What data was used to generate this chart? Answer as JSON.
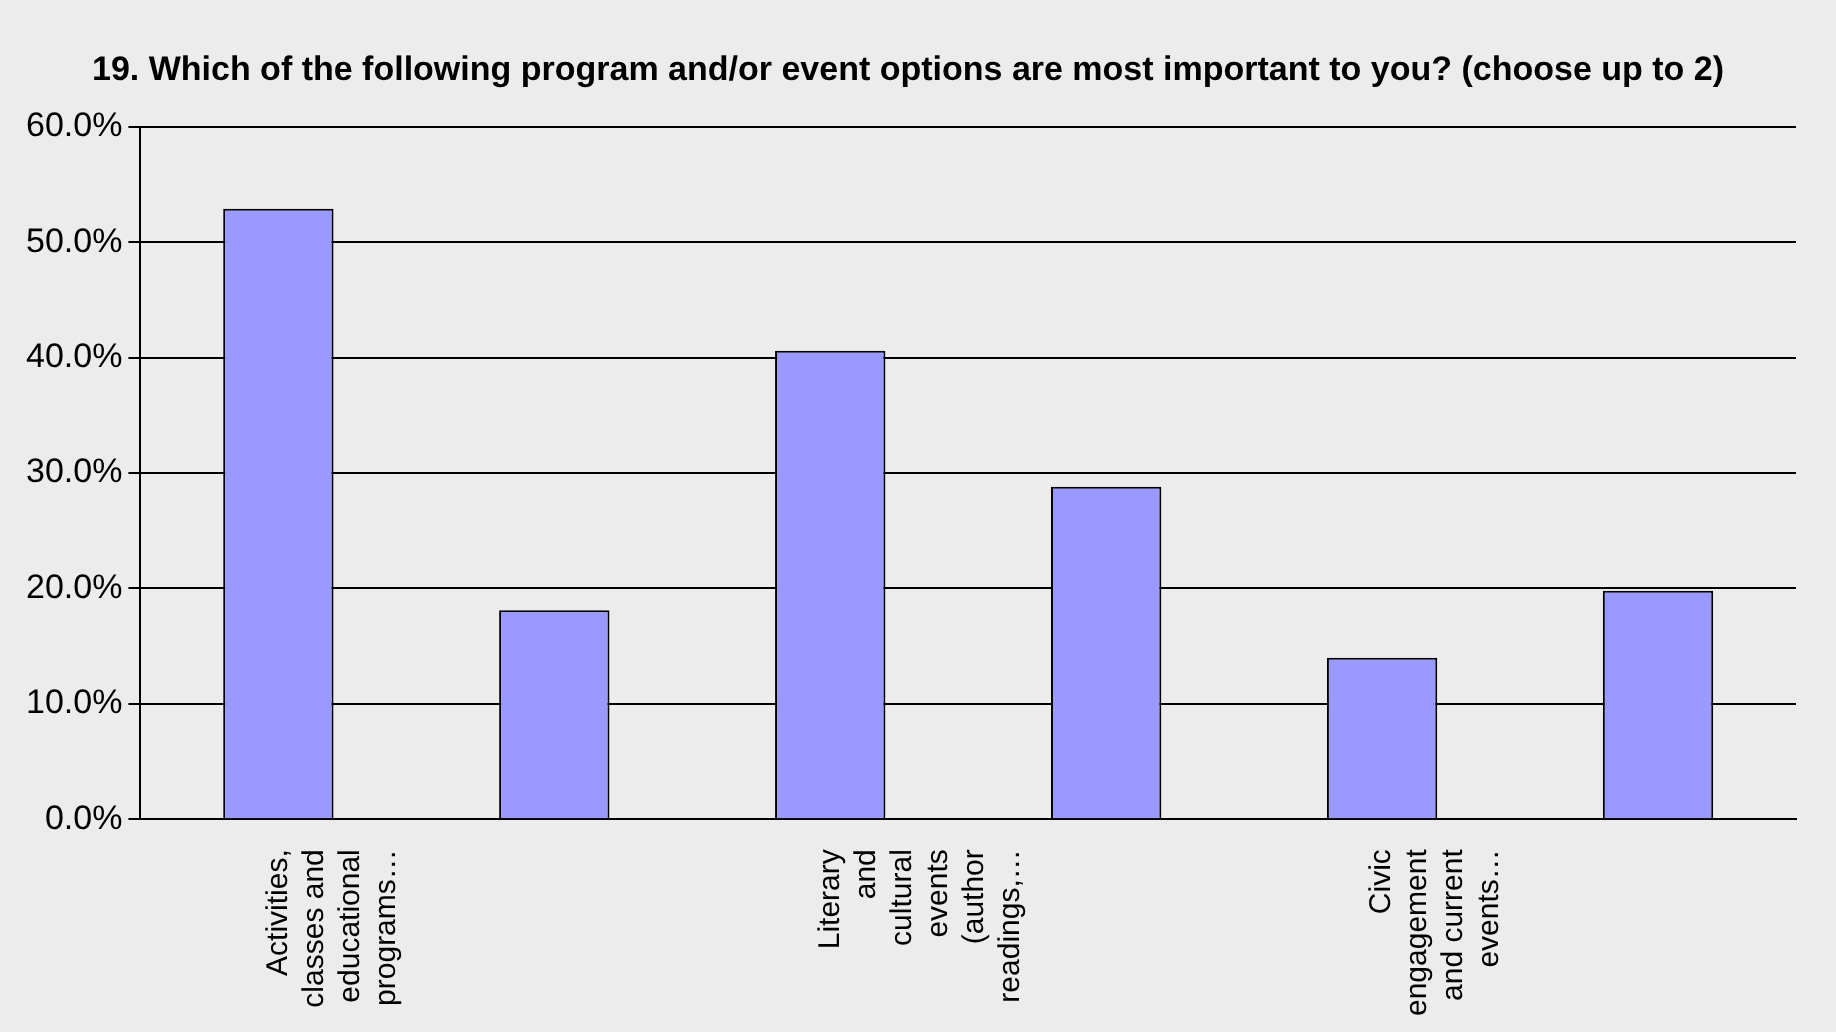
{
  "chart_data": {
    "type": "bar",
    "title": "19. Which of the following program and/or event options are most important to you? (choose up to 2)",
    "categories": [
      "Activities, classes and educational programs…",
      null,
      "Literary and cultural events (author readings,…",
      null,
      "Civic engagement and current events…",
      null
    ],
    "values": [
      52.9,
      18.1,
      40.6,
      28.8,
      14.0,
      19.8
    ],
    "color": "#9999ff",
    "ylim": [
      0,
      60
    ],
    "yticks": [
      {
        "value": 0,
        "label": "0.0%"
      },
      {
        "value": 10,
        "label": "10.0%"
      },
      {
        "value": 20,
        "label": "20.0%"
      },
      {
        "value": 30,
        "label": "30.0%"
      },
      {
        "value": 40,
        "label": "40.0%"
      },
      {
        "value": 50,
        "label": "50.0%"
      },
      {
        "value": 60,
        "label": "60.0%"
      }
    ],
    "grid": "y",
    "legend": false
  }
}
